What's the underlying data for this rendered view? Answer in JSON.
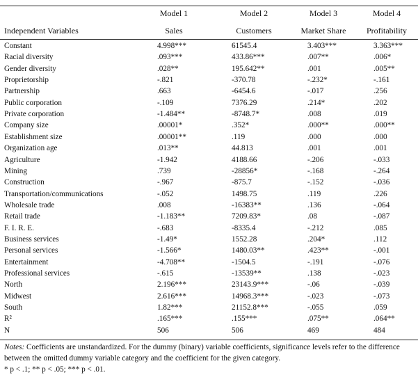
{
  "table": {
    "model_headers": [
      "Model 1",
      "Model 2",
      "Model 3",
      "Model 4"
    ],
    "var_header": "Independent Variables",
    "dep_headers": [
      "Sales",
      "Customers",
      "Market Share",
      "Profitability"
    ],
    "rows": [
      {
        "label": "Constant",
        "m1": "4.998***",
        "m2": "61545.4",
        "m3": "3.403***",
        "m4": "3.363***"
      },
      {
        "label": "Racial diversity",
        "m1": ".093***",
        "m2": "433.86***",
        "m3": ".007**",
        "m4": ".006*"
      },
      {
        "label": "Gender diversity",
        "m1": ".028**",
        "m2": "195.642**",
        "m3": ".001",
        "m4": ".005**"
      },
      {
        "label": "Proprietorship",
        "m1": "-.821",
        "m2": "-370.78",
        "m3": "-.232*",
        "m4": "-.161"
      },
      {
        "label": "Partnership",
        "m1": ".663",
        "m2": "-6454.6",
        "m3": "-.017",
        "m4": ".256"
      },
      {
        "label": "Public corporation",
        "m1": "-.109",
        "m2": "7376.29",
        "m3": ".214*",
        "m4": ".202"
      },
      {
        "label": "Private corporation",
        "m1": "-1.484**",
        "m2": "-8748.7*",
        "m3": ".008",
        "m4": ".019"
      },
      {
        "label": "Company size",
        "m1": ".00001*",
        "m2": ".352*",
        "m3": ".000**",
        "m4": ".000**"
      },
      {
        "label": "Establishment size",
        "m1": ".00001**",
        "m2": ".119",
        "m3": ".000",
        "m4": ".000"
      },
      {
        "label": "Organization age",
        "m1": ".013**",
        "m2": "44.813",
        "m3": ".001",
        "m4": ".001"
      },
      {
        "label": "Agriculture",
        "m1": "-1.942",
        "m2": "4188.66",
        "m3": "-.206",
        "m4": "-.033"
      },
      {
        "label": "Mining",
        "m1": ".739",
        "m2": "-28856*",
        "m3": "-.168",
        "m4": "-.264"
      },
      {
        "label": "Construction",
        "m1": "-.967",
        "m2": "-875.7",
        "m3": "-.152",
        "m4": "-.036"
      },
      {
        "label": "Transportation/communications",
        "m1": "-.052",
        "m2": "1498.75",
        "m3": ".119",
        "m4": ".226"
      },
      {
        "label": "Wholesale trade",
        "m1": ".008",
        "m2": "-16383**",
        "m3": ".136",
        "m4": "-.064"
      },
      {
        "label": "Retail trade",
        "m1": "-1.183**",
        "m2": "7209.83*",
        "m3": ".08",
        "m4": "-.087"
      },
      {
        "label": "F. I. R. E.",
        "m1": "-.683",
        "m2": "-8335.4",
        "m3": "-.212",
        "m4": ".085"
      },
      {
        "label": "Business services",
        "m1": "-1.49*",
        "m2": "1552.28",
        "m3": ".204*",
        "m4": ".112"
      },
      {
        "label": "Personal services",
        "m1": "-1.566*",
        "m2": "1480.03**",
        "m3": ".423**",
        "m4": "-.001"
      },
      {
        "label": "Entertainment",
        "m1": "-4.708**",
        "m2": "-1504.5",
        "m3": "-.191",
        "m4": "-.076"
      },
      {
        "label": "Professional services",
        "m1": "-.615",
        "m2": "-13539**",
        "m3": ".138",
        "m4": "-.023"
      },
      {
        "label": "North",
        "m1": "2.196***",
        "m2": "23143.9***",
        "m3": "-.06",
        "m4": "-.039"
      },
      {
        "label": "Midwest",
        "m1": "2.616***",
        "m2": "14968.3***",
        "m3": "-.023",
        "m4": "-.073"
      },
      {
        "label": "South",
        "m1": "1.82***",
        "m2": "21152.8***",
        "m3": "-.055",
        "m4": ".059"
      },
      {
        "label": "R²",
        "m1": ".165***",
        "m2": ".155***",
        "m3": ".075**",
        "m4": ".064**"
      },
      {
        "label": "N",
        "m1": "506",
        "m2": "506",
        "m3": "469",
        "m4": "484"
      }
    ]
  },
  "notes": {
    "lead": "Notes:",
    "text": " Coefficients are unstandardized. For the dummy (binary) variable coefficients, significance levels refer to the difference between the omitted dummy variable category and the coefficient for the given category.",
    "significance": "* p < .1; ** p < .05; *** p < .01."
  }
}
